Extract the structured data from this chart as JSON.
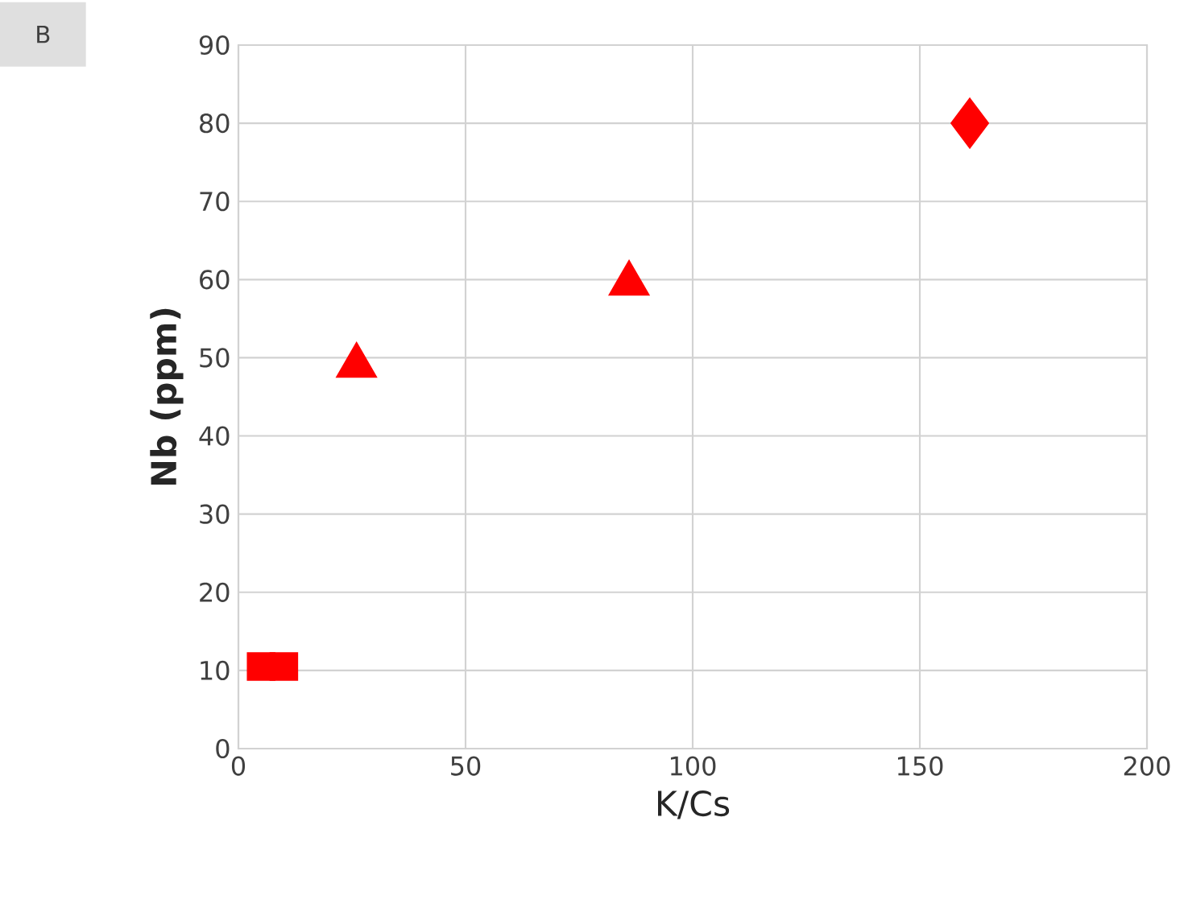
{
  "chart_data": {
    "type": "scatter",
    "xlabel": "K/Cs",
    "ylabel": "Nb (ppm)",
    "annotations": [
      "B"
    ],
    "xlim": [
      0,
      200
    ],
    "xticks": [
      0,
      50,
      100,
      150,
      200
    ],
    "ylim": [
      0,
      90
    ],
    "yticks": [
      0,
      10,
      20,
      30,
      40,
      50,
      60,
      70,
      80,
      90
    ],
    "grid": true,
    "series": [
      {
        "color": "#ff0000",
        "marker": "square",
        "x": [
          5,
          10
        ],
        "values": [
          10.5,
          10.5
        ]
      },
      {
        "color": "#ff0000",
        "marker": "triangle",
        "x": [
          26
        ],
        "values": [
          49
        ]
      },
      {
        "color": "#ff0000",
        "marker": "triangle",
        "x": [
          86
        ],
        "values": [
          59.5
        ]
      },
      {
        "color": "#ff0000",
        "marker": "diamond",
        "x": [
          161
        ],
        "values": [
          80
        ]
      }
    ]
  }
}
